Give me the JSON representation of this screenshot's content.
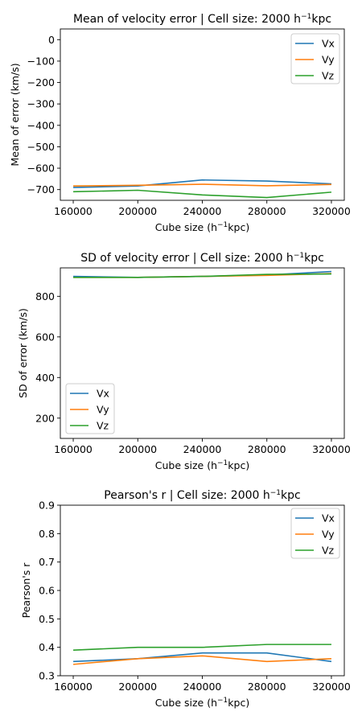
{
  "chart_data": [
    {
      "type": "line",
      "title_main": "Mean of velocity error | Cell size: 2000 h",
      "title_sup": "−1",
      "title_tail": "kpc",
      "xlabel_main": "Cube size (h",
      "xlabel_sup": "−1",
      "xlabel_tail": "kpc)",
      "ylabel": "Mean of error (km/s)",
      "x": [
        160000,
        200000,
        240000,
        280000,
        320000
      ],
      "xticks": [
        "160000",
        "200000",
        "240000",
        "280000",
        "320000"
      ],
      "xlim": [
        152000,
        328000
      ],
      "ylim": [
        -750,
        50
      ],
      "yticks": [
        0,
        -100,
        -200,
        -300,
        -400,
        -500,
        -600,
        -700
      ],
      "ytick_labels": [
        "0",
        "−100",
        "−200",
        "−300",
        "−400",
        "−500",
        "−600",
        "−700"
      ],
      "legend_position": "top-right",
      "series": [
        {
          "name": "Vx",
          "color": "#1f77b4",
          "values": [
            -690,
            -683,
            -655,
            -660,
            -673
          ]
        },
        {
          "name": "Vy",
          "color": "#ff7f0e",
          "values": [
            -683,
            -680,
            -675,
            -682,
            -676
          ]
        },
        {
          "name": "Vz",
          "color": "#2ca02c",
          "values": [
            -710,
            -703,
            -725,
            -737,
            -712
          ]
        }
      ]
    },
    {
      "type": "line",
      "title_main": "SD of velocity error | Cell size: 2000 h",
      "title_sup": "−1",
      "title_tail": "kpc",
      "xlabel_main": "Cube size (h",
      "xlabel_sup": "−1",
      "xlabel_tail": "kpc)",
      "ylabel": "SD of error (km/s)",
      "x": [
        160000,
        200000,
        240000,
        280000,
        320000
      ],
      "xticks": [
        "160000",
        "200000",
        "240000",
        "280000",
        "320000"
      ],
      "xlim": [
        152000,
        328000
      ],
      "ylim": [
        100,
        940
      ],
      "yticks": [
        200,
        400,
        600,
        800
      ],
      "ytick_labels": [
        "200",
        "400",
        "600",
        "800"
      ],
      "legend_position": "bottom-left",
      "series": [
        {
          "name": "Vx",
          "color": "#1f77b4",
          "values": [
            898,
            893,
            898,
            905,
            922
          ]
        },
        {
          "name": "Vy",
          "color": "#ff7f0e",
          "values": [
            893,
            893,
            898,
            903,
            912
          ]
        },
        {
          "name": "Vz",
          "color": "#2ca02c",
          "values": [
            893,
            893,
            898,
            908,
            910
          ]
        }
      ]
    },
    {
      "type": "line",
      "title_main": "Pearson's r | Cell size: 2000 h",
      "title_sup": "−1",
      "title_tail": "kpc",
      "xlabel_main": "Cube size (h",
      "xlabel_sup": "−1",
      "xlabel_tail": "kpc)",
      "ylabel": "Pearson's r",
      "x": [
        160000,
        200000,
        240000,
        280000,
        320000
      ],
      "xticks": [
        "160000",
        "200000",
        "240000",
        "280000",
        "320000"
      ],
      "xlim": [
        152000,
        328000
      ],
      "ylim": [
        0.3,
        0.9
      ],
      "yticks": [
        0.3,
        0.4,
        0.5,
        0.6,
        0.7,
        0.8,
        0.9
      ],
      "ytick_labels": [
        "0.3",
        "0.4",
        "0.5",
        "0.6",
        "0.7",
        "0.8",
        "0.9"
      ],
      "legend_position": "top-right",
      "series": [
        {
          "name": "Vx",
          "color": "#1f77b4",
          "values": [
            0.35,
            0.36,
            0.38,
            0.38,
            0.35
          ]
        },
        {
          "name": "Vy",
          "color": "#ff7f0e",
          "values": [
            0.34,
            0.36,
            0.37,
            0.35,
            0.36
          ]
        },
        {
          "name": "Vz",
          "color": "#2ca02c",
          "values": [
            0.39,
            0.4,
            0.4,
            0.41,
            0.41
          ]
        }
      ]
    }
  ]
}
